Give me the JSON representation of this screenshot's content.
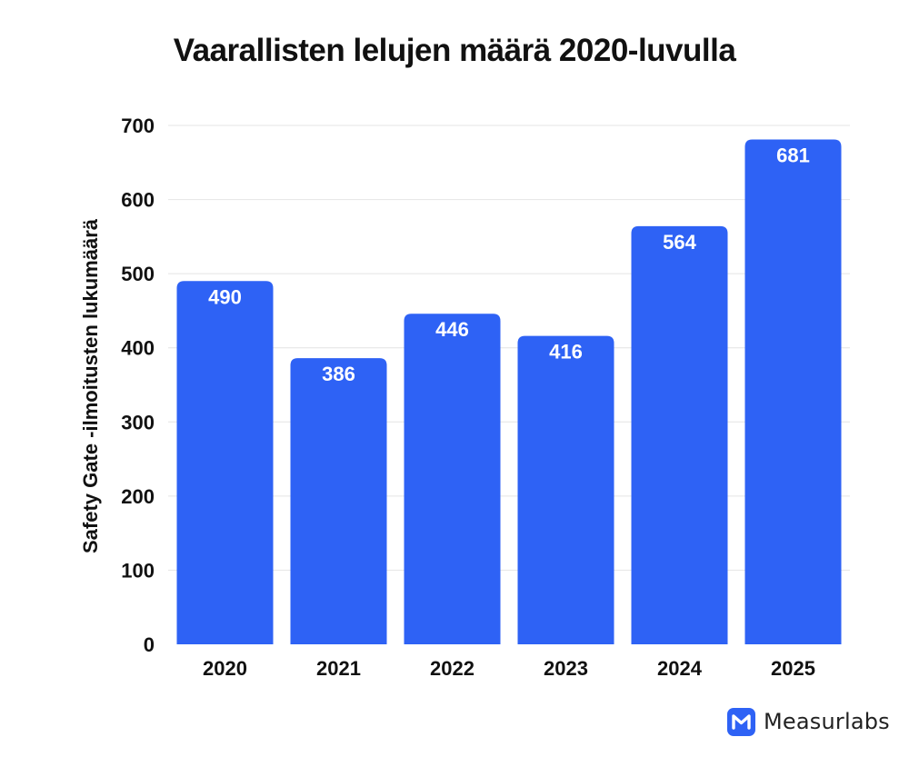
{
  "chart_data": {
    "type": "bar",
    "title": "Vaarallisten lelujen määrä 2020-luvulla",
    "ylabel": "Safety Gate -ilmoitusten lukumäärä",
    "xlabel": "",
    "categories": [
      "2020",
      "2021",
      "2022",
      "2023",
      "2024",
      "2025"
    ],
    "values": [
      490,
      386,
      446,
      416,
      564,
      681
    ],
    "ylim": [
      0,
      700
    ],
    "yticks": [
      0,
      100,
      200,
      300,
      400,
      500,
      600,
      700
    ],
    "grid": true,
    "data_labels": true,
    "bar_color": "#2e62f5"
  },
  "brand": {
    "name": "Measurlabs",
    "accent": "#2e62f5"
  }
}
